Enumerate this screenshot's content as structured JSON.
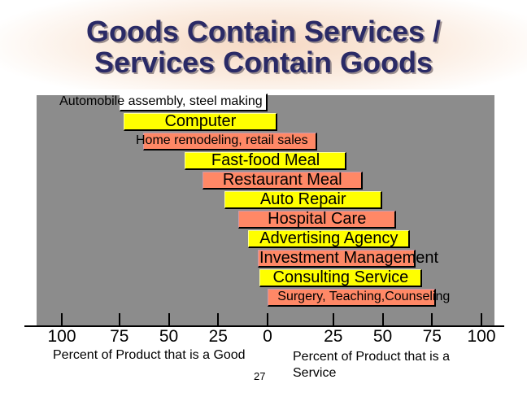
{
  "title": {
    "line1": "Goods Contain Services /",
    "line2": "Services Contain Goods"
  },
  "bars": [
    {
      "label": "Automobile assembly, steel making",
      "fill": "white",
      "goods_pct": 75,
      "service_pct": 0
    },
    {
      "label": "Computer",
      "fill": "yellow",
      "goods_pct": 73,
      "service_pct": 5
    },
    {
      "label": "Home remodeling, retail sales",
      "fill": "salmon",
      "goods_pct": 63,
      "service_pct": 25
    },
    {
      "label": "Fast-food Meal",
      "fill": "yellow",
      "goods_pct": 42,
      "service_pct": 40
    },
    {
      "label": "Restaurant Meal",
      "fill": "salmon",
      "goods_pct": 33,
      "service_pct": 48
    },
    {
      "label": "Auto Repair",
      "fill": "yellow",
      "goods_pct": 22,
      "service_pct": 58
    },
    {
      "label": "Hospital Care",
      "fill": "salmon",
      "goods_pct": 15,
      "service_pct": 65
    },
    {
      "label": "Advertising Agency",
      "fill": "yellow",
      "goods_pct": 10,
      "service_pct": 72
    },
    {
      "label": "Investment Management",
      "fill": "salmon",
      "goods_pct": 5,
      "service_pct": 75
    },
    {
      "label": "Consulting Service",
      "fill": "yellow",
      "goods_pct": 4,
      "service_pct": 78
    },
    {
      "label": "Surgery, Teaching,Counseling",
      "fill": "salmon",
      "goods_pct": 0,
      "service_pct": 85
    }
  ],
  "axis": {
    "goods_ticks": [
      "100",
      "75",
      "50",
      "25",
      "0"
    ],
    "service_ticks": [
      "25",
      "50",
      "75",
      "100"
    ],
    "goods_caption": "Percent of Product that is a Good",
    "service_caption_line1": "Percent of Product that is a",
    "service_caption_line2": "Service"
  },
  "page_number": "27",
  "colors": {
    "yellow": "#ffff00",
    "salmon": "#ff8866",
    "white": "#ffffff",
    "panel": "#8c8c8c",
    "title": "#2a2a66"
  }
}
